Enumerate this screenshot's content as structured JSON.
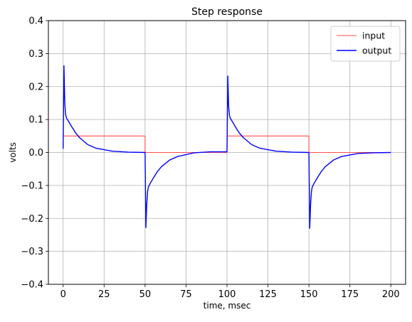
{
  "chart_data": {
    "type": "line",
    "title": "Step response",
    "xlabel": "time, msec",
    "ylabel": "volts",
    "xlim": [
      -9,
      209
    ],
    "ylim": [
      -0.4,
      0.4
    ],
    "xticks": [
      0,
      25,
      50,
      75,
      100,
      125,
      150,
      175,
      200
    ],
    "yticks": [
      -0.4,
      -0.3,
      -0.2,
      -0.1,
      0.0,
      0.1,
      0.2,
      0.3,
      0.4
    ],
    "xtick_labels": [
      "0",
      "25",
      "50",
      "75",
      "100",
      "125",
      "150",
      "175",
      "200"
    ],
    "ytick_labels": [
      "−0.4",
      "−0.3",
      "−0.2",
      "−0.1",
      "0.0",
      "0.1",
      "0.2",
      "0.3",
      "0.4"
    ],
    "grid": true,
    "legend_position": "upper right",
    "series": [
      {
        "name": "input",
        "color": "#ff4d4d",
        "x": [
          0,
          50,
          50,
          100,
          100,
          150,
          150,
          200
        ],
        "y": [
          0.05,
          0.05,
          0.0,
          0.0,
          0.05,
          0.05,
          0.0,
          0.0
        ]
      },
      {
        "name": "output",
        "color": "#0000ff",
        "x": [
          0,
          0.5,
          1,
          1.5,
          2,
          3,
          5,
          7.5,
          10,
          15,
          20,
          30,
          40,
          50,
          50.5,
          51,
          51.5,
          52,
          53,
          55,
          57.5,
          60,
          65,
          70,
          80,
          90,
          100,
          100.5,
          101,
          101.5,
          102,
          103,
          105,
          107.5,
          110,
          115,
          120,
          130,
          140,
          150,
          150.5,
          151,
          151.5,
          152,
          153,
          155,
          157.5,
          160,
          165,
          170,
          180,
          190,
          200
        ],
        "y": [
          0.011,
          0.263,
          0.15,
          0.115,
          0.105,
          0.097,
          0.08,
          0.06,
          0.045,
          0.024,
          0.013,
          0.004,
          0.001,
          0.0,
          -0.228,
          -0.16,
          -0.12,
          -0.105,
          -0.095,
          -0.078,
          -0.058,
          -0.043,
          -0.023,
          -0.012,
          -0.001,
          0.002,
          0.002,
          0.232,
          0.14,
          0.112,
          0.104,
          0.096,
          0.079,
          0.059,
          0.045,
          0.024,
          0.013,
          0.004,
          0.001,
          0.0,
          -0.23,
          -0.16,
          -0.12,
          -0.105,
          -0.095,
          -0.078,
          -0.058,
          -0.043,
          -0.023,
          -0.012,
          -0.003,
          -0.001,
          0.0
        ]
      }
    ]
  }
}
